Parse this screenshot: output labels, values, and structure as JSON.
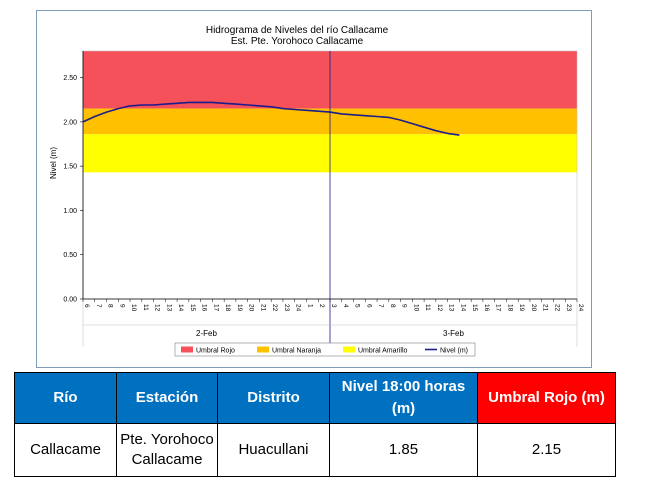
{
  "chart_data": {
    "type": "line",
    "title": "Hidrograma de Niveles del río Callacame",
    "subtitle": "Est. Pte. Yorohoco Callacame",
    "ylabel": "Nivel (m)",
    "xlabel": "",
    "ylim": [
      0,
      2.8
    ],
    "yticks": [
      "0.00",
      "0.50",
      "1.00",
      "1.50",
      "2.00",
      "2.50"
    ],
    "ytick_values": [
      0,
      0.5,
      1.0,
      1.5,
      2.0,
      2.5
    ],
    "hour_labels": [
      "6",
      "7",
      "8",
      "9",
      "10",
      "11",
      "12",
      "13",
      "14",
      "15",
      "16",
      "17",
      "18",
      "19",
      "20",
      "21",
      "22",
      "23",
      "24",
      "1",
      "2",
      "3",
      "4",
      "5",
      "6",
      "7",
      "8",
      "9",
      "10",
      "11",
      "12",
      "13",
      "14",
      "15",
      "16",
      "17",
      "18",
      "19",
      "20",
      "21",
      "22",
      "23",
      "24"
    ],
    "day_labels": [
      "2-Feb",
      "3-Feb"
    ],
    "bands": [
      {
        "name": "Umbral Rojo",
        "from": 2.15,
        "to": 2.8,
        "color": "#f4515a"
      },
      {
        "name": "Umbral Naranja",
        "from": 1.86,
        "to": 2.15,
        "color": "#ffc000"
      },
      {
        "name": "Umbral Amarillo",
        "from": 1.43,
        "to": 1.86,
        "color": "#ffff00"
      }
    ],
    "series": [
      {
        "name": "Nivel (m)",
        "color": "#1c1c8c",
        "values": [
          2.0,
          2.06,
          2.11,
          2.15,
          2.18,
          2.19,
          2.19,
          2.2,
          2.21,
          2.22,
          2.22,
          2.22,
          2.21,
          2.2,
          2.19,
          2.18,
          2.17,
          2.15,
          2.14,
          2.13,
          2.12,
          2.11,
          2.09,
          2.08,
          2.07,
          2.06,
          2.05,
          2.02,
          1.98,
          1.94,
          1.9,
          1.87,
          1.85
        ]
      }
    ],
    "legend": [
      "Umbral Rojo",
      "Umbral Naranja",
      "Umbral Amarillo",
      "Nivel (m)"
    ],
    "legend_position": "bottom",
    "grid": false
  },
  "table": {
    "headers": [
      "Río",
      "Estación",
      "Distrito",
      "Nivel 18:00 horas (m)",
      "Umbral Rojo (m)"
    ],
    "row": [
      "Callacame",
      "Pte. Yorohoco Callacame",
      "Huacullani",
      "1.85",
      "2.15"
    ]
  }
}
